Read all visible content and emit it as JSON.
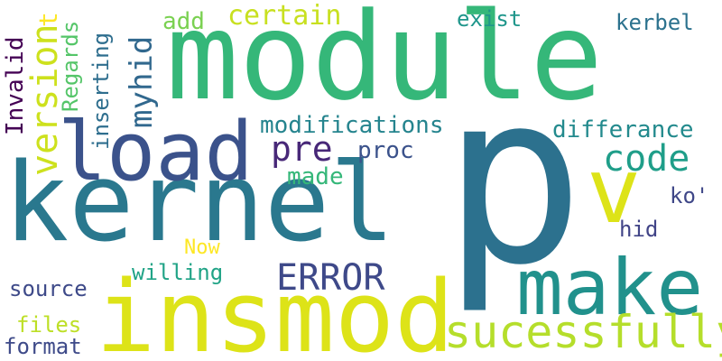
{
  "words": [
    {
      "id": "p",
      "text": "p",
      "color": "#2c718e",
      "rotated": false
    },
    {
      "id": "module",
      "text": "module",
      "color": "#35b779",
      "rotated": false
    },
    {
      "id": "kernel",
      "text": "kernel",
      "color": "#2a788e",
      "rotated": false
    },
    {
      "id": "insmod",
      "text": "insmod",
      "color": "#dde318",
      "rotated": false
    },
    {
      "id": "load",
      "text": "load",
      "color": "#3b528b",
      "rotated": false
    },
    {
      "id": "make",
      "text": "make",
      "color": "#21918c",
      "rotated": false
    },
    {
      "id": "v",
      "text": "v",
      "color": "#dde318",
      "rotated": false
    },
    {
      "id": "sucessfully",
      "text": "sucessfully",
      "color": "#b5de2b",
      "rotated": false
    },
    {
      "id": "version",
      "text": "version",
      "color": "#cde11d",
      "rotated": true
    },
    {
      "id": "error",
      "text": "ERROR",
      "color": "#3e4989",
      "rotated": false
    },
    {
      "id": "code",
      "text": "code",
      "color": "#1f9e89",
      "rotated": false
    },
    {
      "id": "pre",
      "text": "pre",
      "color": "#482878",
      "rotated": false
    },
    {
      "id": "myhid",
      "text": "myhid",
      "color": "#31688e",
      "rotated": true
    },
    {
      "id": "certain",
      "text": "certain",
      "color": "#c8e020",
      "rotated": false
    },
    {
      "id": "modifications",
      "text": "modifications",
      "color": "#25848e",
      "rotated": false
    },
    {
      "id": "differance",
      "text": "differance",
      "color": "#238a8d",
      "rotated": false
    },
    {
      "id": "made",
      "text": "made",
      "color": "#35b779",
      "rotated": false
    },
    {
      "id": "proc",
      "text": "proc",
      "color": "#3b528b",
      "rotated": false
    },
    {
      "id": "willing",
      "text": "willing",
      "color": "#20a386",
      "rotated": false
    },
    {
      "id": "files",
      "text": "files",
      "color": "#bddf26",
      "rotated": false
    },
    {
      "id": "format",
      "text": "format",
      "color": "#3e4a89",
      "rotated": false
    },
    {
      "id": "source",
      "text": "source",
      "color": "#3e4a89",
      "rotated": false
    },
    {
      "id": "now",
      "text": "Now",
      "color": "#fde725",
      "rotated": false
    },
    {
      "id": "add",
      "text": "add",
      "color": "#7ad151",
      "rotated": false
    },
    {
      "id": "exist",
      "text": "exist",
      "color": "#1f968b",
      "rotated": false
    },
    {
      "id": "kerbel",
      "text": "kerbel",
      "color": "#2c728e",
      "rotated": false
    },
    {
      "id": "ko",
      "text": "ko'",
      "color": "#3f4788",
      "rotated": false
    },
    {
      "id": "hid",
      "text": "hid",
      "color": "#414487",
      "rotated": false
    },
    {
      "id": "inserting",
      "text": "inserting",
      "color": "#2e6e8e",
      "rotated": true
    },
    {
      "id": "regards",
      "text": "Regards",
      "color": "#54c568",
      "rotated": true
    },
    {
      "id": "invalid",
      "text": "Invalid",
      "color": "#440154",
      "rotated": true
    },
    {
      "id": "t",
      "text": "t",
      "color": "#fde725",
      "rotated": true
    }
  ]
}
